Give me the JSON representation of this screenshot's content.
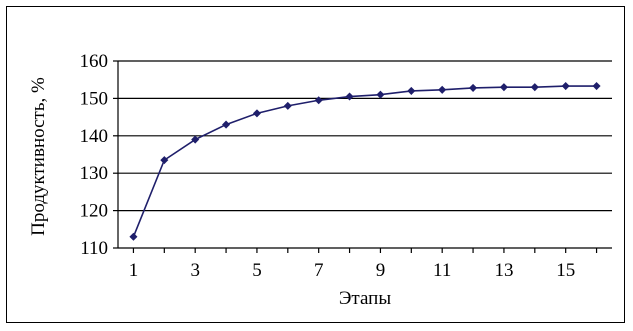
{
  "chart_data": {
    "type": "line",
    "title": "",
    "xlabel": "Этапы",
    "ylabel": "Продуктивность, %",
    "x": [
      1,
      2,
      3,
      4,
      5,
      6,
      7,
      8,
      9,
      10,
      11,
      12,
      13,
      14,
      15,
      16
    ],
    "x_ticks": [
      "1",
      "3",
      "5",
      "7",
      "9",
      "11",
      "13",
      "15"
    ],
    "y_ticks": [
      "110",
      "120",
      "130",
      "140",
      "150",
      "160"
    ],
    "ylim": [
      110,
      160
    ],
    "xlim": [
      0.5,
      16.5
    ],
    "grid": "horizontal",
    "series": [
      {
        "values": [
          113,
          133.5,
          139,
          143,
          146,
          148,
          149.5,
          150.5,
          151,
          152,
          152.3,
          152.8,
          153,
          153,
          153.3,
          153.3
        ],
        "color": "#1f1f6b"
      }
    ]
  }
}
